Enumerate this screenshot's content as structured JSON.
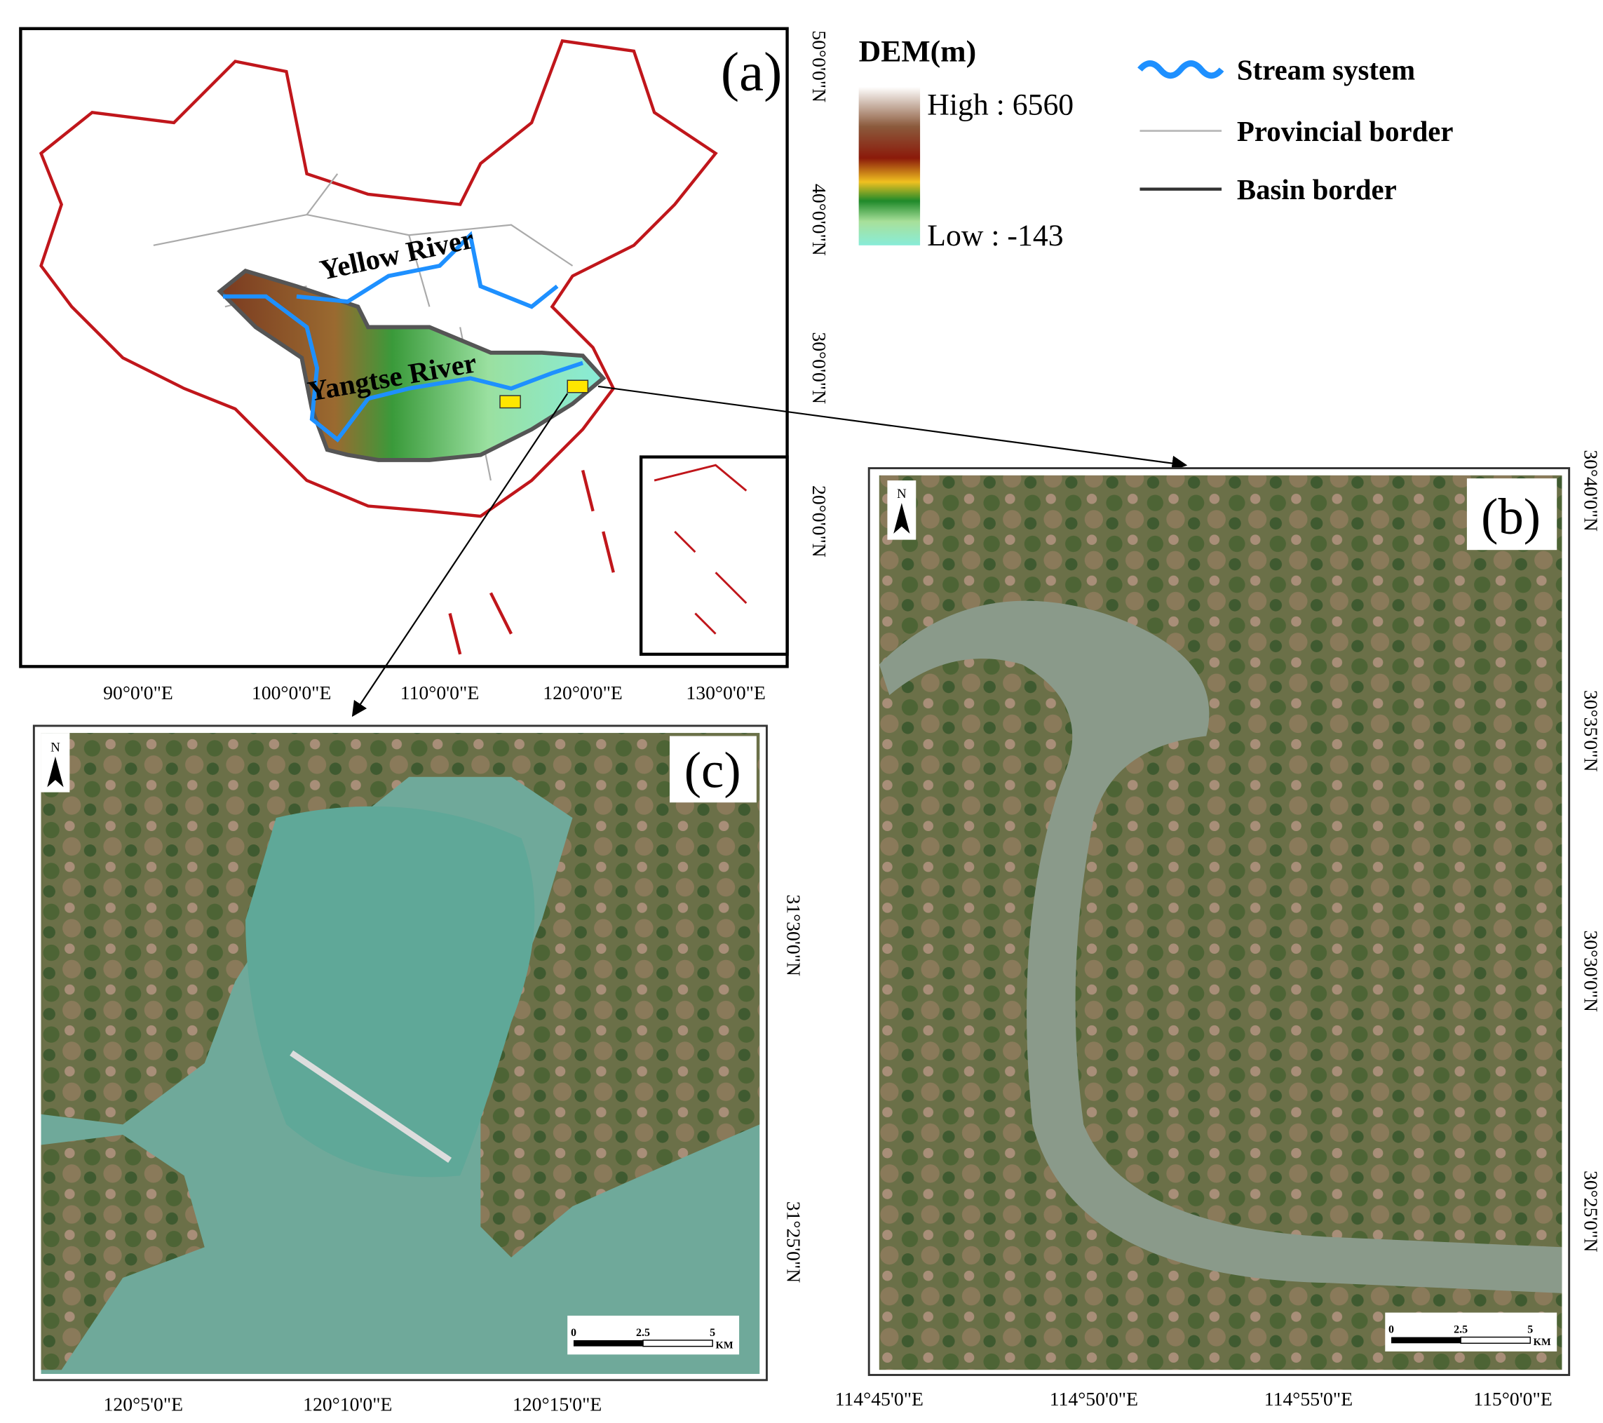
{
  "panel_a": {
    "label": "(a)",
    "rivers": [
      "Yellow River",
      "Yangtse River"
    ],
    "lat_ticks": [
      "50°0'0\"N",
      "40°0'0\"N",
      "30°0'0\"N",
      "20°0'0\"N"
    ],
    "lon_ticks": [
      "90°0'0\"E",
      "100°0'0\"E",
      "110°0'0\"E",
      "120°0'0\"E",
      "130°0'0\"E"
    ]
  },
  "legend": {
    "dem_title": "DEM(m)",
    "high": "High : 6560",
    "low": "Low : -143",
    "items": [
      "Stream system",
      "Provincial border",
      "Basin border"
    ]
  },
  "panel_b": {
    "label": "(b)",
    "north": "N",
    "lat_ticks": [
      "30°40'0\"N",
      "30°35'0\"N",
      "30°30'0\"N",
      "30°25'0\"N"
    ],
    "lon_ticks": [
      "114°45'0\"E",
      "114°50'0\"E",
      "114°55'0\"E",
      "115°0'0\"E"
    ],
    "scale": [
      "0",
      "2.5",
      "5",
      "KM"
    ]
  },
  "panel_c": {
    "label": "(c)",
    "north": "N",
    "lat_ticks": [
      "31°30'0\"N",
      "31°25'0\"N"
    ],
    "lon_ticks": [
      "120°5'0\"E",
      "120°10'0\"E",
      "120°15'0\"E"
    ],
    "scale": [
      "0",
      "2.5",
      "5",
      "KM"
    ]
  }
}
